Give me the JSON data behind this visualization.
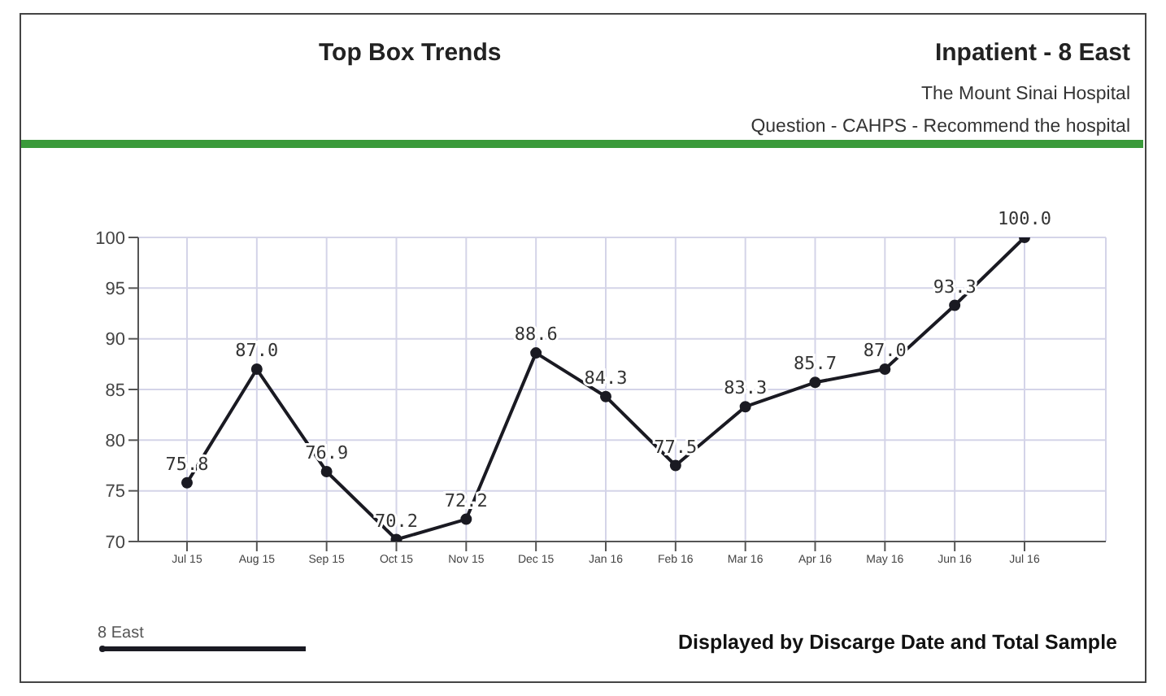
{
  "chart_data": {
    "type": "line",
    "title": "Top Box Trends",
    "subtitle": "Inpatient - 8 East",
    "annotations": [
      "The Mount Sinai Hospital",
      "Question - CAHPS - Recommend the hospital",
      "Displayed by Discarge Date and Total Sample"
    ],
    "categories": [
      "Jul 15",
      "Aug 15",
      "Sep 15",
      "Oct 15",
      "Nov 15",
      "Dec 15",
      "Jan 16",
      "Feb 16",
      "Mar 16",
      "Apr 16",
      "May 16",
      "Jun 16",
      "Jul 16"
    ],
    "series": [
      {
        "name": "8 East",
        "color": "#1a1a22",
        "values": [
          75.8,
          87.0,
          76.9,
          70.2,
          72.2,
          88.6,
          84.3,
          77.5,
          83.3,
          85.7,
          87.0,
          93.3,
          100.0
        ],
        "value_labels": [
          "75.8",
          "87.0",
          "76.9",
          "70.2",
          "72.2",
          "88.6",
          "84.3",
          "77.5",
          "83.3",
          "85.7",
          "87.0",
          "93.3",
          "100.0"
        ]
      }
    ],
    "ylim": [
      70,
      100
    ],
    "yticks": [
      70,
      75,
      80,
      85,
      90,
      95,
      100
    ],
    "grid": true,
    "legend": "bottom left",
    "marker": "circle",
    "line_style": "solid"
  }
}
